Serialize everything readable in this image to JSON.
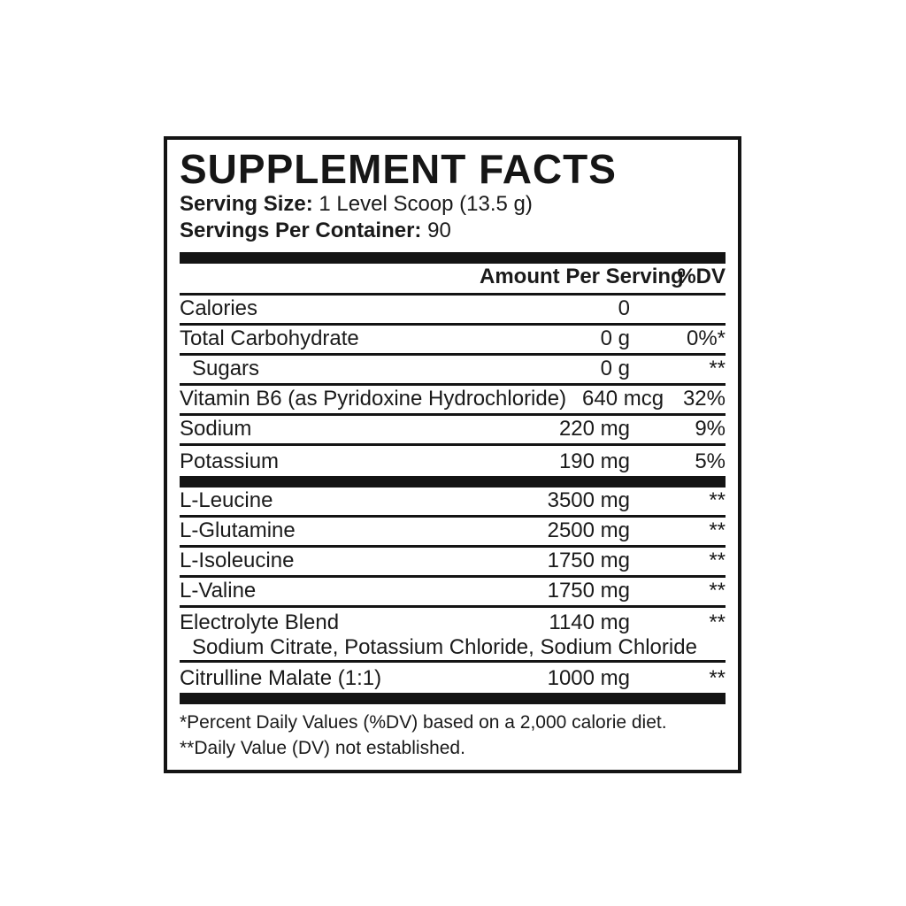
{
  "label": {
    "title": "SUPPLEMENT FACTS",
    "serving_size_label": "Serving Size:",
    "serving_size_value": " 1 Level Scoop (13.5 g)",
    "servings_per_container_label": "Servings Per Container:",
    "servings_per_container_value": " 90",
    "header": {
      "amount": "Amount Per Serving",
      "dv": "%DV"
    },
    "rows_section1": [
      {
        "name": "Calories",
        "amount": "0",
        "dv": ""
      },
      {
        "name": "Total Carbohydrate",
        "amount": "0 g",
        "dv": "0%*"
      },
      {
        "name": "Sugars",
        "amount": "0 g",
        "dv": "**"
      },
      {
        "name": "Vitamin B6 (as Pyridoxine Hydrochloride)",
        "amount": "640 mcg",
        "dv": "32%"
      },
      {
        "name": "Sodium",
        "amount": "220 mg",
        "dv": "9%"
      },
      {
        "name": "Potassium",
        "amount": "190 mg",
        "dv": "5%"
      }
    ],
    "rows_section2": [
      {
        "name": "L-Leucine",
        "amount": "3500 mg",
        "dv": "**"
      },
      {
        "name": "L-Glutamine",
        "amount": "2500 mg",
        "dv": "**"
      },
      {
        "name": "L-Isoleucine",
        "amount": "1750 mg",
        "dv": "**"
      },
      {
        "name": "L-Valine",
        "amount": "1750 mg",
        "dv": "**"
      },
      {
        "name": "Electrolyte Blend",
        "amount": "1140 mg",
        "dv": "**",
        "sub": "Sodium Citrate, Potassium Chloride, Sodium Chloride"
      },
      {
        "name": "Citrulline Malate (1:1)",
        "amount": "1000 mg",
        "dv": "**"
      }
    ],
    "footnotes": [
      "*Percent Daily Values (%DV) based on a 2,000 calorie diet.",
      "**Daily Value (DV) not established."
    ],
    "colors": {
      "text": "#1a1a1a",
      "rule": "#141414",
      "background": "#ffffff"
    }
  }
}
